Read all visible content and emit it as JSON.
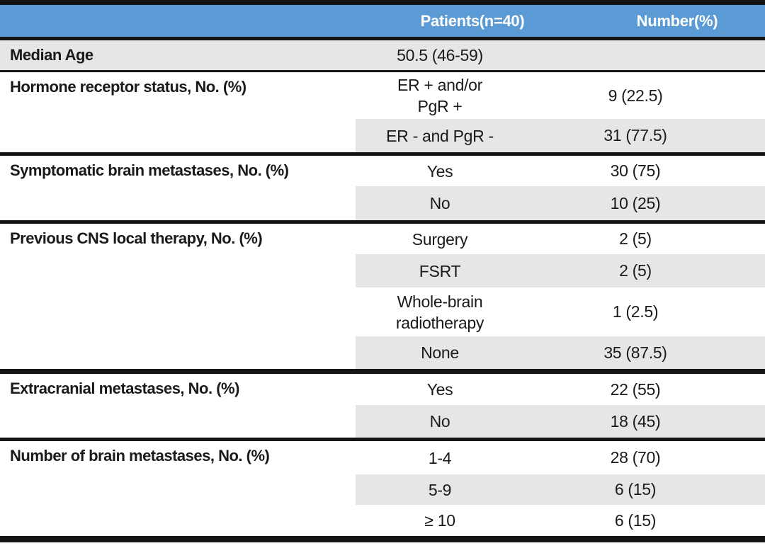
{
  "table": {
    "title_row": {
      "patients_header": "Patients(n=40)",
      "number_header": "Number(%)"
    },
    "colors": {
      "header_bg": "#5B9BD5",
      "header_text": "#FFFFFF",
      "band_bg": "#E7E6E6",
      "line": "#141414",
      "text": "#1A1A1A"
    },
    "sections": [
      {
        "label": "Median Age",
        "full_shade": true,
        "rows": [
          {
            "lines": [
              "50.5 (46-59)"
            ],
            "number": "",
            "shaded": true
          }
        ]
      },
      {
        "label": "Hormone receptor status, No. (%)",
        "rows": [
          {
            "lines": [
              "ER + and/or",
              "PgR +"
            ],
            "number": "9 (22.5)",
            "shaded": false
          },
          {
            "lines": [
              "ER - and PgR -"
            ],
            "number": "31 (77.5)",
            "shaded": true
          }
        ]
      },
      {
        "label": "Symptomatic brain metastases, No. (%)",
        "rows": [
          {
            "lines": [
              "Yes"
            ],
            "number": "30 (75)",
            "shaded": false
          },
          {
            "lines": [
              "No"
            ],
            "number": "10 (25)",
            "shaded": true
          }
        ]
      },
      {
        "label": "Previous CNS local therapy, No. (%)",
        "rows": [
          {
            "lines": [
              "Surgery"
            ],
            "number": "2 (5)",
            "shaded": false
          },
          {
            "lines": [
              "FSRT"
            ],
            "number": "2 (5)",
            "shaded": true
          },
          {
            "lines": [
              "Whole-brain",
              "radiotherapy"
            ],
            "number": "1 (2.5)",
            "shaded": false
          },
          {
            "lines": [
              "None"
            ],
            "number": "35 (87.5)",
            "shaded": true
          }
        ]
      },
      {
        "label": "Extracranial metastases, No. (%)",
        "rows": [
          {
            "lines": [
              "Yes"
            ],
            "number": "22 (55)",
            "shaded": false
          },
          {
            "lines": [
              "No"
            ],
            "number": "18 (45)",
            "shaded": true
          }
        ]
      },
      {
        "label": "Number of brain metastases, No. (%)",
        "rows": [
          {
            "lines": [
              "1-4"
            ],
            "number": "28 (70)",
            "shaded": false
          },
          {
            "lines": [
              "5-9"
            ],
            "number": "6 (15)",
            "shaded": true
          },
          {
            "lines": [
              "≥ 10"
            ],
            "number": "6 (15)",
            "shaded": false
          }
        ]
      }
    ]
  }
}
